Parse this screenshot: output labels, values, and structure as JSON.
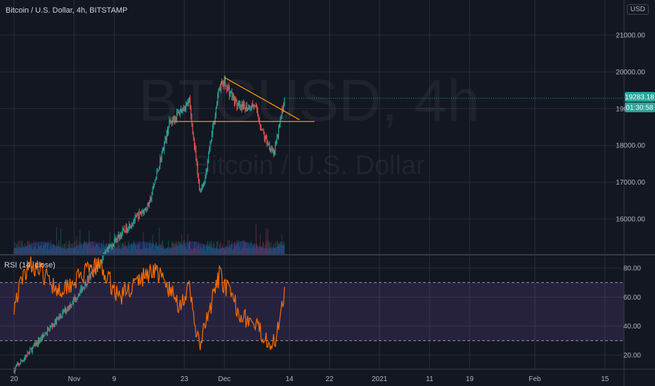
{
  "header": {
    "title": "Bitcoin / U.S. Dollar, 4h, BITSTAMP",
    "currency": "USD"
  },
  "watermark": {
    "symbol": "BTCUSD, 4h",
    "name": "Bitcoin / U.S. Dollar"
  },
  "price_badge": {
    "price": "19283.18",
    "countdown": "01:30:58",
    "color": "#26a69a"
  },
  "rsi": {
    "label": "RSI (14, close)",
    "line_color": "#ff6d00",
    "band_color": "#7e57c2"
  },
  "colors": {
    "background": "#131722",
    "grid": "#2a2e39",
    "up": "#26a69a",
    "down": "#ef5350",
    "trendline": "#ff9800"
  },
  "chart_data": [
    {
      "type": "candlestick",
      "symbol": "BTCUSD",
      "interval": "4h",
      "y_ticks": [
        "16000.00",
        "17000.00",
        "18000.00",
        "19000.00",
        "20000.00",
        "21000.00"
      ],
      "x_ticks": [
        "20",
        "Nov",
        "9",
        "23",
        "Dec",
        "14",
        "22",
        "2021",
        "11",
        "19",
        "Feb",
        "15"
      ],
      "ylim": [
        15000,
        21900
      ],
      "last_price": 19283.18,
      "key_points": [
        {
          "date": "2020-10-20",
          "close": 11900
        },
        {
          "date": "2020-11-01",
          "close": 13800
        },
        {
          "date": "2020-11-09",
          "close": 15400
        },
        {
          "date": "2020-11-16",
          "close": 16400
        },
        {
          "date": "2020-11-20",
          "close": 18600
        },
        {
          "date": "2020-11-24",
          "close": 19200
        },
        {
          "date": "2020-11-26",
          "close": 16800
        },
        {
          "date": "2020-11-27",
          "close": 17000
        },
        {
          "date": "2020-11-30",
          "close": 19600
        },
        {
          "date": "2020-12-01",
          "close": 19700
        },
        {
          "date": "2020-12-04",
          "close": 19000
        },
        {
          "date": "2020-12-07",
          "close": 19100
        },
        {
          "date": "2020-12-09",
          "close": 18200
        },
        {
          "date": "2020-12-11",
          "close": 17800
        },
        {
          "date": "2020-12-13",
          "close": 19283.18
        }
      ],
      "annotations": [
        {
          "type": "horizontal_line",
          "price": 18650
        },
        {
          "type": "trend_line",
          "from": {
            "date": "2020-12-01",
            "price": 19850
          },
          "to": {
            "date": "2020-12-16",
            "price": 18700
          }
        }
      ]
    },
    {
      "type": "line",
      "indicator": "RSI (14, close)",
      "y_ticks": [
        "20.00",
        "40.00",
        "60.00",
        "80.00"
      ],
      "ylim": [
        14,
        91
      ],
      "bands": [
        30,
        70
      ],
      "key_points": [
        {
          "date": "2020-10-20",
          "value": 55
        },
        {
          "date": "2020-10-23",
          "value": 85
        },
        {
          "date": "2020-10-29",
          "value": 65
        },
        {
          "date": "2020-11-06",
          "value": 82
        },
        {
          "date": "2020-11-10",
          "value": 60
        },
        {
          "date": "2020-11-17",
          "value": 80
        },
        {
          "date": "2020-11-22",
          "value": 55
        },
        {
          "date": "2020-11-24",
          "value": 65
        },
        {
          "date": "2020-11-26",
          "value": 25
        },
        {
          "date": "2020-11-30",
          "value": 75
        },
        {
          "date": "2020-12-04",
          "value": 50
        },
        {
          "date": "2020-12-11",
          "value": 27
        },
        {
          "date": "2020-12-13",
          "value": 66
        }
      ]
    }
  ]
}
